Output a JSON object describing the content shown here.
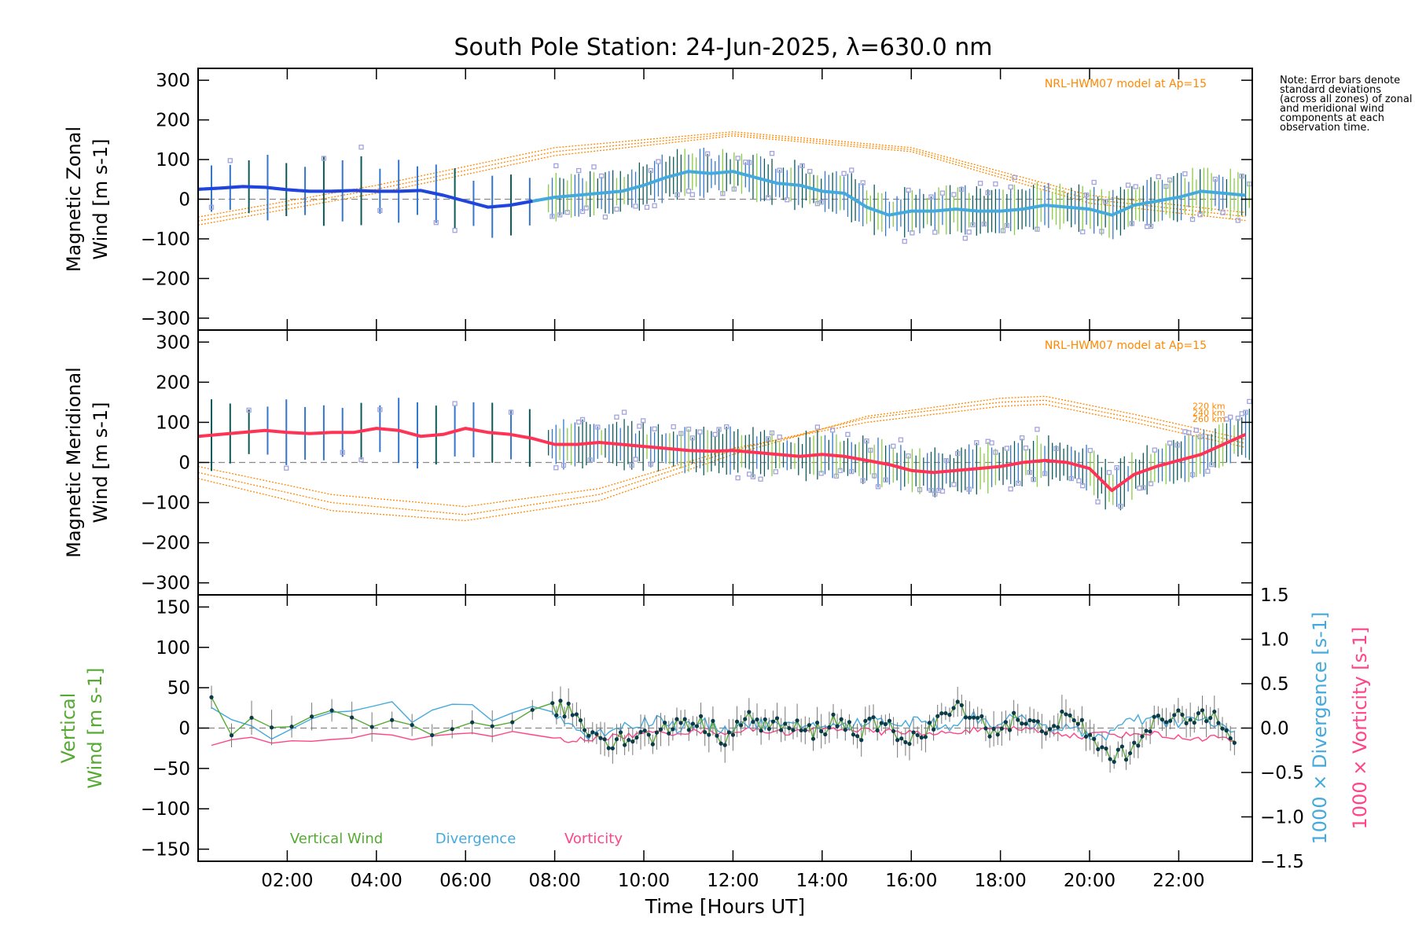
{
  "title": "South Pole Station: 24-Jun-2025, λ=630.0 nm",
  "note": "Note: Error bars denote standard deviations (across all zones) of zonal and meridional wind components at each observation time.",
  "colors": {
    "zonal_line": "#2244dd",
    "zonal_line_light": "#44aadd",
    "meridional_line": "#ff3355",
    "model": "#ff8800",
    "error_bar_dark": "#0a5a5a",
    "error_bar_blue": "#3377cc",
    "error_bar_green": "#88cc44",
    "scatter": "#a3a3dd",
    "scatter_pink": "#ffaaaa",
    "vertical": "#55aa33",
    "divergence": "#44aadd",
    "vorticity": "#ff4488",
    "zero_line": "#888888"
  },
  "chart_data": [
    {
      "panel": "zonal",
      "type": "line",
      "ylabel": "Magnetic Zonal Wind [m s-1]",
      "ylim": [
        -330,
        330
      ],
      "yticks": [
        -300,
        -200,
        -100,
        0,
        100,
        200,
        300
      ],
      "model_label": "NRL-HWM07 model at Ap=15",
      "series": [
        {
          "name": "Zonal wind",
          "x": [
            0.0,
            0.5,
            1.0,
            1.5,
            2.0,
            2.5,
            3.0,
            3.5,
            4.0,
            4.5,
            5.0,
            5.5,
            6.0,
            6.5,
            7.0,
            7.5,
            8.0,
            8.5,
            9.0,
            9.5,
            10.0,
            10.5,
            11.0,
            11.5,
            12.0,
            12.5,
            13.0,
            13.5,
            14.0,
            14.5,
            15.0,
            15.5,
            16.0,
            16.5,
            17.0,
            17.5,
            18.0,
            18.5,
            19.0,
            19.5,
            20.0,
            20.5,
            21.0,
            21.5,
            22.0,
            22.5,
            23.0,
            23.5
          ],
          "values": [
            25,
            28,
            32,
            30,
            24,
            20,
            20,
            22,
            20,
            20,
            22,
            10,
            -5,
            -20,
            -15,
            -5,
            5,
            10,
            15,
            20,
            35,
            55,
            70,
            65,
            70,
            55,
            40,
            35,
            20,
            15,
            -20,
            -40,
            -30,
            -30,
            -25,
            -30,
            -30,
            -25,
            -15,
            -20,
            -25,
            -40,
            -15,
            -5,
            5,
            20,
            15,
            10
          ]
        }
      ],
      "model_series": [
        {
          "name": "220 km",
          "x": [
            0,
            4,
            8,
            12,
            16,
            20,
            23.6
          ],
          "values": [
            -45,
            35,
            130,
            170,
            130,
            10,
            -35
          ]
        },
        {
          "name": "240 km",
          "x": [
            0,
            4,
            8,
            12,
            16,
            20,
            23.6
          ],
          "values": [
            -55,
            25,
            120,
            165,
            125,
            0,
            -45
          ]
        },
        {
          "name": "260 km",
          "x": [
            0,
            4,
            8,
            12,
            16,
            20,
            23.6
          ],
          "values": [
            -65,
            15,
            110,
            160,
            120,
            -10,
            -55
          ]
        }
      ]
    },
    {
      "panel": "meridional",
      "type": "line",
      "ylabel": "Magnetic Meridional Wind [m s-1]",
      "ylim": [
        -330,
        330
      ],
      "yticks": [
        -300,
        -200,
        -100,
        0,
        100,
        200,
        300
      ],
      "model_label": "NRL-HWM07 model at Ap=15",
      "model_altitudes": [
        "220 km",
        "240 km",
        "260 km"
      ],
      "series": [
        {
          "name": "Meridional wind",
          "x": [
            0.0,
            0.5,
            1.0,
            1.5,
            2.0,
            2.5,
            3.0,
            3.5,
            4.0,
            4.5,
            5.0,
            5.5,
            6.0,
            6.5,
            7.0,
            7.5,
            8.0,
            8.5,
            9.0,
            9.5,
            10.0,
            10.5,
            11.0,
            11.5,
            12.0,
            12.5,
            13.0,
            13.5,
            14.0,
            14.5,
            15.0,
            15.5,
            16.0,
            16.5,
            17.0,
            17.5,
            18.0,
            18.5,
            19.0,
            19.5,
            20.0,
            20.5,
            21.0,
            21.5,
            22.0,
            22.5,
            23.0,
            23.5
          ],
          "values": [
            65,
            70,
            75,
            80,
            75,
            72,
            75,
            75,
            85,
            80,
            65,
            70,
            85,
            75,
            70,
            60,
            45,
            45,
            50,
            45,
            40,
            35,
            30,
            28,
            30,
            25,
            20,
            15,
            20,
            15,
            5,
            -5,
            -20,
            -25,
            -20,
            -15,
            -10,
            0,
            5,
            0,
            -15,
            -70,
            -30,
            -10,
            5,
            20,
            45,
            70
          ]
        }
      ],
      "model_series": [
        {
          "name": "220 km",
          "x": [
            0,
            3,
            6,
            9,
            12,
            15,
            18,
            19,
            21,
            23.6
          ],
          "values": [
            -40,
            -120,
            -145,
            -95,
            20,
            115,
            160,
            165,
            120,
            55
          ]
        },
        {
          "name": "240 km",
          "x": [
            0,
            3,
            6,
            9,
            12,
            15,
            18,
            19,
            21,
            23.6
          ],
          "values": [
            -25,
            -100,
            -130,
            -80,
            30,
            110,
            150,
            155,
            110,
            45
          ]
        },
        {
          "name": "260 km",
          "x": [
            0,
            3,
            6,
            9,
            12,
            15,
            18,
            19,
            21,
            23.6
          ],
          "values": [
            -10,
            -80,
            -110,
            -65,
            35,
            100,
            140,
            145,
            100,
            35
          ]
        }
      ]
    },
    {
      "panel": "vertical",
      "type": "line",
      "ylabel": "Vertical Wind [m s-1]",
      "ylim": [
        -165,
        165
      ],
      "yticks": [
        -150,
        -100,
        -50,
        0,
        50,
        100,
        150
      ],
      "y2label_divergence": "1000 × Divergence [s-1]",
      "y2label_vorticity": "1000 × Vorticity [s-1]",
      "y2lim": [
        -1.5,
        1.5
      ],
      "y2ticks": [
        -1.5,
        -1.0,
        -0.5,
        0.0,
        0.5,
        1.0,
        1.5
      ],
      "legend": [
        "Vertical Wind",
        "Divergence",
        "Vorticity"
      ],
      "series": [
        {
          "name": "Vertical Wind",
          "x": [
            0.3,
            0.8,
            1.3,
            1.8,
            2.3,
            2.8,
            3.3,
            3.8,
            4.3,
            4.8,
            5.3,
            5.8,
            6.3,
            6.8,
            7.3,
            7.8,
            8.3,
            8.8,
            9.3,
            9.8,
            10.3,
            10.8,
            11.3,
            11.8,
            12.3,
            12.8,
            13.3,
            13.8,
            14.3,
            14.8,
            15.3,
            15.8,
            16.3,
            16.8,
            17.3,
            17.8,
            18.3,
            18.8,
            19.3,
            19.8,
            20.3,
            20.8,
            21.3,
            21.8,
            22.3,
            22.8,
            23.3
          ],
          "values": [
            30,
            -12,
            5,
            -5,
            12,
            15,
            25,
            10,
            15,
            5,
            -20,
            -5,
            10,
            15,
            5,
            20,
            25,
            -5,
            -15,
            -10,
            -10,
            10,
            5,
            -10,
            10,
            5,
            0,
            -5,
            10,
            -5,
            5,
            -10,
            -10,
            20,
            25,
            -5,
            10,
            0,
            10,
            5,
            -30,
            -35,
            5,
            10,
            10,
            25,
            -15
          ]
        },
        {
          "name": "Divergence",
          "x": [
            0.3,
            0.8,
            1.3,
            1.8,
            2.3,
            2.8,
            3.3,
            3.8,
            4.3,
            4.8,
            5.3,
            5.8,
            6.3,
            6.8,
            7.3,
            7.8,
            8.3,
            8.8,
            9.3,
            9.8,
            10.3,
            10.8,
            11.3,
            11.8,
            12.3,
            12.8,
            13.3,
            13.8,
            14.3,
            14.8,
            15.3,
            15.8,
            16.3,
            16.8,
            17.3,
            17.8,
            18.3,
            18.8,
            19.3,
            19.8,
            20.3,
            20.8,
            21.3,
            21.8,
            22.3,
            22.8,
            23.3
          ],
          "values": [
            0.2,
            0.1,
            -0.05,
            -0.15,
            0.0,
            0.15,
            0.2,
            0.3,
            0.25,
            0.05,
            0.15,
            0.3,
            0.2,
            0.1,
            0.2,
            0.25,
            0.05,
            -0.1,
            0.0,
            0.05,
            0.1,
            0.0,
            0.05,
            0.0,
            0.05,
            0.05,
            0.0,
            0.05,
            0.0,
            0.05,
            0.1,
            0.05,
            0.1,
            0.0,
            0.15,
            0.05,
            0.1,
            0.05,
            0.0,
            -0.05,
            -0.1,
            0.05,
            0.1,
            0.05,
            0.1,
            0.05,
            -0.05
          ]
        },
        {
          "name": "Vorticity",
          "x": [
            0.3,
            0.8,
            1.3,
            1.8,
            2.3,
            2.8,
            3.3,
            3.8,
            4.3,
            4.8,
            5.3,
            5.8,
            6.3,
            6.8,
            7.3,
            7.8,
            8.3,
            8.8,
            9.3,
            9.8,
            10.3,
            10.8,
            11.3,
            11.8,
            12.3,
            12.8,
            13.3,
            13.8,
            14.3,
            14.8,
            15.3,
            15.8,
            16.3,
            16.8,
            17.3,
            17.8,
            18.3,
            18.8,
            19.3,
            19.8,
            20.3,
            20.8,
            21.3,
            21.8,
            22.3,
            22.8,
            23.3
          ],
          "values": [
            -0.2,
            -0.15,
            -0.12,
            -0.2,
            -0.15,
            -0.12,
            -0.1,
            -0.05,
            -0.08,
            -0.1,
            -0.08,
            -0.06,
            -0.1,
            -0.08,
            -0.05,
            -0.1,
            -0.15,
            -0.12,
            -0.1,
            -0.08,
            -0.05,
            -0.05,
            -0.03,
            -0.05,
            -0.02,
            -0.03,
            -0.05,
            -0.02,
            0.0,
            -0.02,
            -0.05,
            -0.03,
            -0.08,
            -0.05,
            -0.02,
            -0.03,
            0.0,
            -0.02,
            -0.05,
            -0.1,
            -0.05,
            -0.08,
            -0.05,
            -0.1,
            -0.12,
            -0.1,
            -0.15
          ]
        }
      ]
    }
  ],
  "x_axis": {
    "label": "Time [Hours UT]",
    "xlim": [
      0.0,
      23.65
    ],
    "tick_hours": [
      2,
      4,
      6,
      8,
      10,
      12,
      14,
      16,
      18,
      20,
      22
    ],
    "tick_labels": [
      "02:00",
      "04:00",
      "06:00",
      "08:00",
      "10:00",
      "12:00",
      "14:00",
      "16:00",
      "18:00",
      "20:00",
      "22:00"
    ]
  }
}
